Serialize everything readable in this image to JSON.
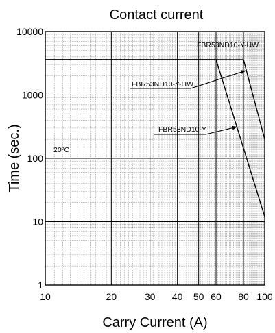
{
  "chart_data": {
    "type": "line",
    "title": "Contact current",
    "xlabel": "Carry Current (A)",
    "ylabel": "Time (sec.)",
    "x_scale": "log",
    "y_scale": "log",
    "xlim": [
      10,
      100
    ],
    "ylim": [
      1,
      10000
    ],
    "grid": true,
    "x_ticks": [
      "10",
      "20",
      "30",
      "40",
      "50",
      "60",
      "80",
      "100"
    ],
    "x_tick_values": [
      10,
      20,
      30,
      40,
      50,
      60,
      80,
      100
    ],
    "y_ticks": [
      "1",
      "10",
      "100",
      "1000",
      "10000"
    ],
    "y_tick_values": [
      1,
      10,
      100,
      1000,
      10000
    ],
    "temperature_label": "20ºC",
    "series": [
      {
        "name": "FBR53ND10-Y-HW",
        "x": [
          10,
          80,
          100
        ],
        "y": [
          3600,
          3600,
          200
        ]
      },
      {
        "name": "FBR53ND10-Y",
        "x": [
          10,
          60,
          100
        ],
        "y": [
          3600,
          3600,
          12
        ]
      }
    ],
    "annotations": [
      {
        "text": "FBR53ND10-Y-HW",
        "series": 0,
        "leader": false
      },
      {
        "text": "FBR53ND10-Y-HW",
        "series": 0,
        "leader": true,
        "points_to": [
          82,
          3600
        ]
      },
      {
        "text": "FBR53ND10-Y",
        "series": 1,
        "leader": true,
        "points_to": [
          77,
          330
        ]
      }
    ]
  }
}
